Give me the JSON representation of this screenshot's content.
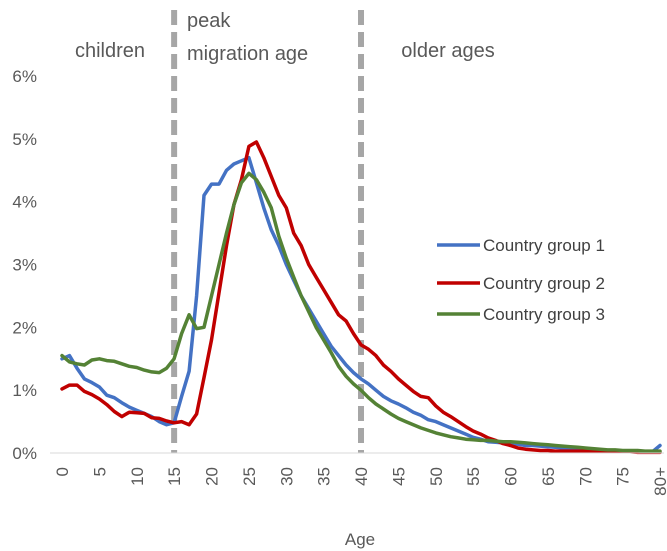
{
  "chart_data": {
    "type": "line",
    "xlabel": "Age",
    "ylabel": "",
    "x_tick_labels": [
      "0",
      "5",
      "10",
      "15",
      "20",
      "25",
      "30",
      "35",
      "40",
      "45",
      "50",
      "55",
      "60",
      "65",
      "70",
      "75",
      "80+"
    ],
    "y_tick_labels": [
      "0%",
      "1%",
      "2%",
      "3%",
      "4%",
      "5%",
      "6%"
    ],
    "ylim": [
      0,
      6
    ],
    "xlim": [
      0,
      80
    ],
    "grid": false,
    "legend_position": "right",
    "regions": [
      {
        "label_lines": [
          "children"
        ]
      },
      {
        "label_lines": [
          "peak",
          "migration age"
        ]
      },
      {
        "label_lines": [
          "older ages"
        ]
      }
    ],
    "dividers_at_age": [
      15,
      40
    ],
    "series": [
      {
        "name": "Country group 1",
        "color": "#4472c4",
        "x": [
          0,
          1,
          2,
          3,
          4,
          5,
          6,
          7,
          8,
          9,
          10,
          11,
          12,
          13,
          14,
          15,
          16,
          17,
          18,
          19,
          20,
          21,
          22,
          23,
          24,
          25,
          26,
          27,
          28,
          29,
          30,
          31,
          32,
          33,
          34,
          35,
          36,
          37,
          38,
          39,
          40,
          41,
          42,
          43,
          44,
          45,
          46,
          47,
          48,
          49,
          50,
          51,
          52,
          53,
          54,
          55,
          56,
          57,
          58,
          59,
          60,
          61,
          62,
          63,
          64,
          65,
          66,
          67,
          68,
          69,
          70,
          71,
          72,
          73,
          74,
          75,
          76,
          77,
          78,
          79,
          80
        ],
        "values": [
          1.5,
          1.55,
          1.35,
          1.18,
          1.12,
          1.05,
          0.92,
          0.88,
          0.8,
          0.73,
          0.68,
          0.63,
          0.58,
          0.5,
          0.45,
          0.48,
          0.9,
          1.3,
          2.5,
          4.1,
          4.28,
          4.28,
          4.5,
          4.6,
          4.65,
          4.7,
          4.3,
          3.9,
          3.55,
          3.3,
          3.0,
          2.75,
          2.5,
          2.3,
          2.1,
          1.9,
          1.7,
          1.55,
          1.4,
          1.28,
          1.18,
          1.1,
          1.0,
          0.9,
          0.83,
          0.78,
          0.72,
          0.65,
          0.6,
          0.53,
          0.5,
          0.45,
          0.4,
          0.35,
          0.3,
          0.25,
          0.22,
          0.18,
          0.17,
          0.16,
          0.15,
          0.14,
          0.12,
          0.12,
          0.11,
          0.1,
          0.09,
          0.08,
          0.07,
          0.06,
          0.05,
          0.05,
          0.04,
          0.04,
          0.03,
          0.03,
          0.02,
          0.02,
          0.02,
          0.02,
          0.12
        ]
      },
      {
        "name": "Country group 2",
        "color": "#c00000",
        "x": [
          0,
          1,
          2,
          3,
          4,
          5,
          6,
          7,
          8,
          9,
          10,
          11,
          12,
          13,
          14,
          15,
          16,
          17,
          18,
          19,
          20,
          21,
          22,
          23,
          24,
          25,
          26,
          27,
          28,
          29,
          30,
          31,
          32,
          33,
          34,
          35,
          36,
          37,
          38,
          39,
          40,
          41,
          42,
          43,
          44,
          45,
          46,
          47,
          48,
          49,
          50,
          51,
          52,
          53,
          54,
          55,
          56,
          57,
          58,
          59,
          60,
          61,
          62,
          63,
          64,
          65,
          66,
          67,
          68,
          69,
          70,
          71,
          72,
          73,
          74,
          75,
          76,
          77,
          78,
          79,
          80
        ],
        "values": [
          1.02,
          1.08,
          1.08,
          0.98,
          0.93,
          0.86,
          0.77,
          0.66,
          0.58,
          0.65,
          0.64,
          0.63,
          0.56,
          0.55,
          0.51,
          0.48,
          0.5,
          0.45,
          0.62,
          1.2,
          1.8,
          2.55,
          3.3,
          3.95,
          4.35,
          4.88,
          4.95,
          4.7,
          4.4,
          4.1,
          3.9,
          3.5,
          3.3,
          3.0,
          2.8,
          2.6,
          2.4,
          2.2,
          2.1,
          1.9,
          1.72,
          1.65,
          1.55,
          1.4,
          1.3,
          1.18,
          1.08,
          0.98,
          0.9,
          0.88,
          0.75,
          0.65,
          0.58,
          0.5,
          0.42,
          0.35,
          0.3,
          0.24,
          0.2,
          0.15,
          0.12,
          0.08,
          0.06,
          0.05,
          0.04,
          0.04,
          0.03,
          0.03,
          0.03,
          0.03,
          0.03,
          0.02,
          0.02,
          0.02,
          0.02,
          0.02,
          0.02,
          0.01,
          0.01,
          0.01,
          0.01
        ]
      },
      {
        "name": "Country group 3",
        "color": "#548235",
        "x": [
          0,
          1,
          2,
          3,
          4,
          5,
          6,
          7,
          8,
          9,
          10,
          11,
          12,
          13,
          14,
          15,
          16,
          17,
          18,
          19,
          20,
          21,
          22,
          23,
          24,
          25,
          26,
          27,
          28,
          29,
          30,
          31,
          32,
          33,
          34,
          35,
          36,
          37,
          38,
          39,
          40,
          41,
          42,
          43,
          44,
          45,
          46,
          47,
          48,
          49,
          50,
          51,
          52,
          53,
          54,
          55,
          56,
          57,
          58,
          59,
          60,
          61,
          62,
          63,
          64,
          65,
          66,
          67,
          68,
          69,
          70,
          71,
          72,
          73,
          74,
          75,
          76,
          77,
          78,
          79,
          80
        ],
        "values": [
          1.55,
          1.45,
          1.42,
          1.4,
          1.48,
          1.5,
          1.47,
          1.46,
          1.42,
          1.38,
          1.36,
          1.32,
          1.29,
          1.28,
          1.35,
          1.5,
          1.9,
          2.2,
          1.98,
          2.0,
          2.5,
          3.0,
          3.5,
          3.95,
          4.3,
          4.45,
          4.35,
          4.15,
          3.9,
          3.45,
          3.1,
          2.8,
          2.5,
          2.25,
          2.0,
          1.8,
          1.6,
          1.38,
          1.22,
          1.1,
          1.0,
          0.88,
          0.78,
          0.7,
          0.62,
          0.55,
          0.5,
          0.45,
          0.4,
          0.36,
          0.32,
          0.29,
          0.26,
          0.24,
          0.22,
          0.21,
          0.2,
          0.2,
          0.19,
          0.18,
          0.18,
          0.17,
          0.16,
          0.15,
          0.14,
          0.13,
          0.12,
          0.11,
          0.1,
          0.09,
          0.08,
          0.07,
          0.06,
          0.05,
          0.05,
          0.04,
          0.04,
          0.04,
          0.03,
          0.03,
          0.03
        ]
      }
    ]
  }
}
